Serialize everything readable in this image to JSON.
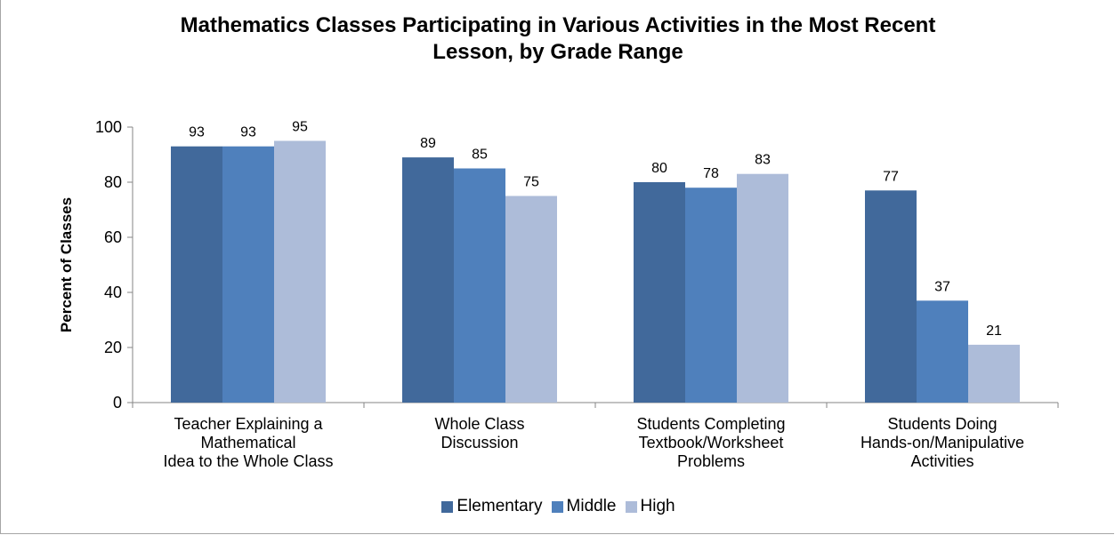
{
  "chart_data": {
    "type": "bar",
    "title": "Mathematics Classes Participating in Various Activities in the Most Recent\nLesson, by Grade Range",
    "ylabel": "Percent of Classes",
    "xlabel": "",
    "ylim": [
      0,
      100
    ],
    "yticks": [
      "0",
      "20",
      "40",
      "60",
      "80",
      "100"
    ],
    "grid": false,
    "legend_position": "bottom",
    "categories": [
      [
        "Teacher Explaining a",
        "Mathematical",
        "Idea to the Whole Class"
      ],
      [
        "Whole Class",
        "Discussion"
      ],
      [
        "Students Completing",
        "Textbook/Worksheet",
        "Problems"
      ],
      [
        "Students Doing",
        "Hands-on/Manipulative",
        "Activities"
      ]
    ],
    "series": [
      {
        "name": "Elementary",
        "color": "#41699b",
        "values": [
          93,
          89,
          80,
          77
        ]
      },
      {
        "name": "Middle",
        "color": "#4f80bc",
        "values": [
          93,
          85,
          78,
          37
        ]
      },
      {
        "name": "High",
        "color": "#adbcd9",
        "values": [
          95,
          75,
          83,
          21
        ]
      }
    ]
  }
}
